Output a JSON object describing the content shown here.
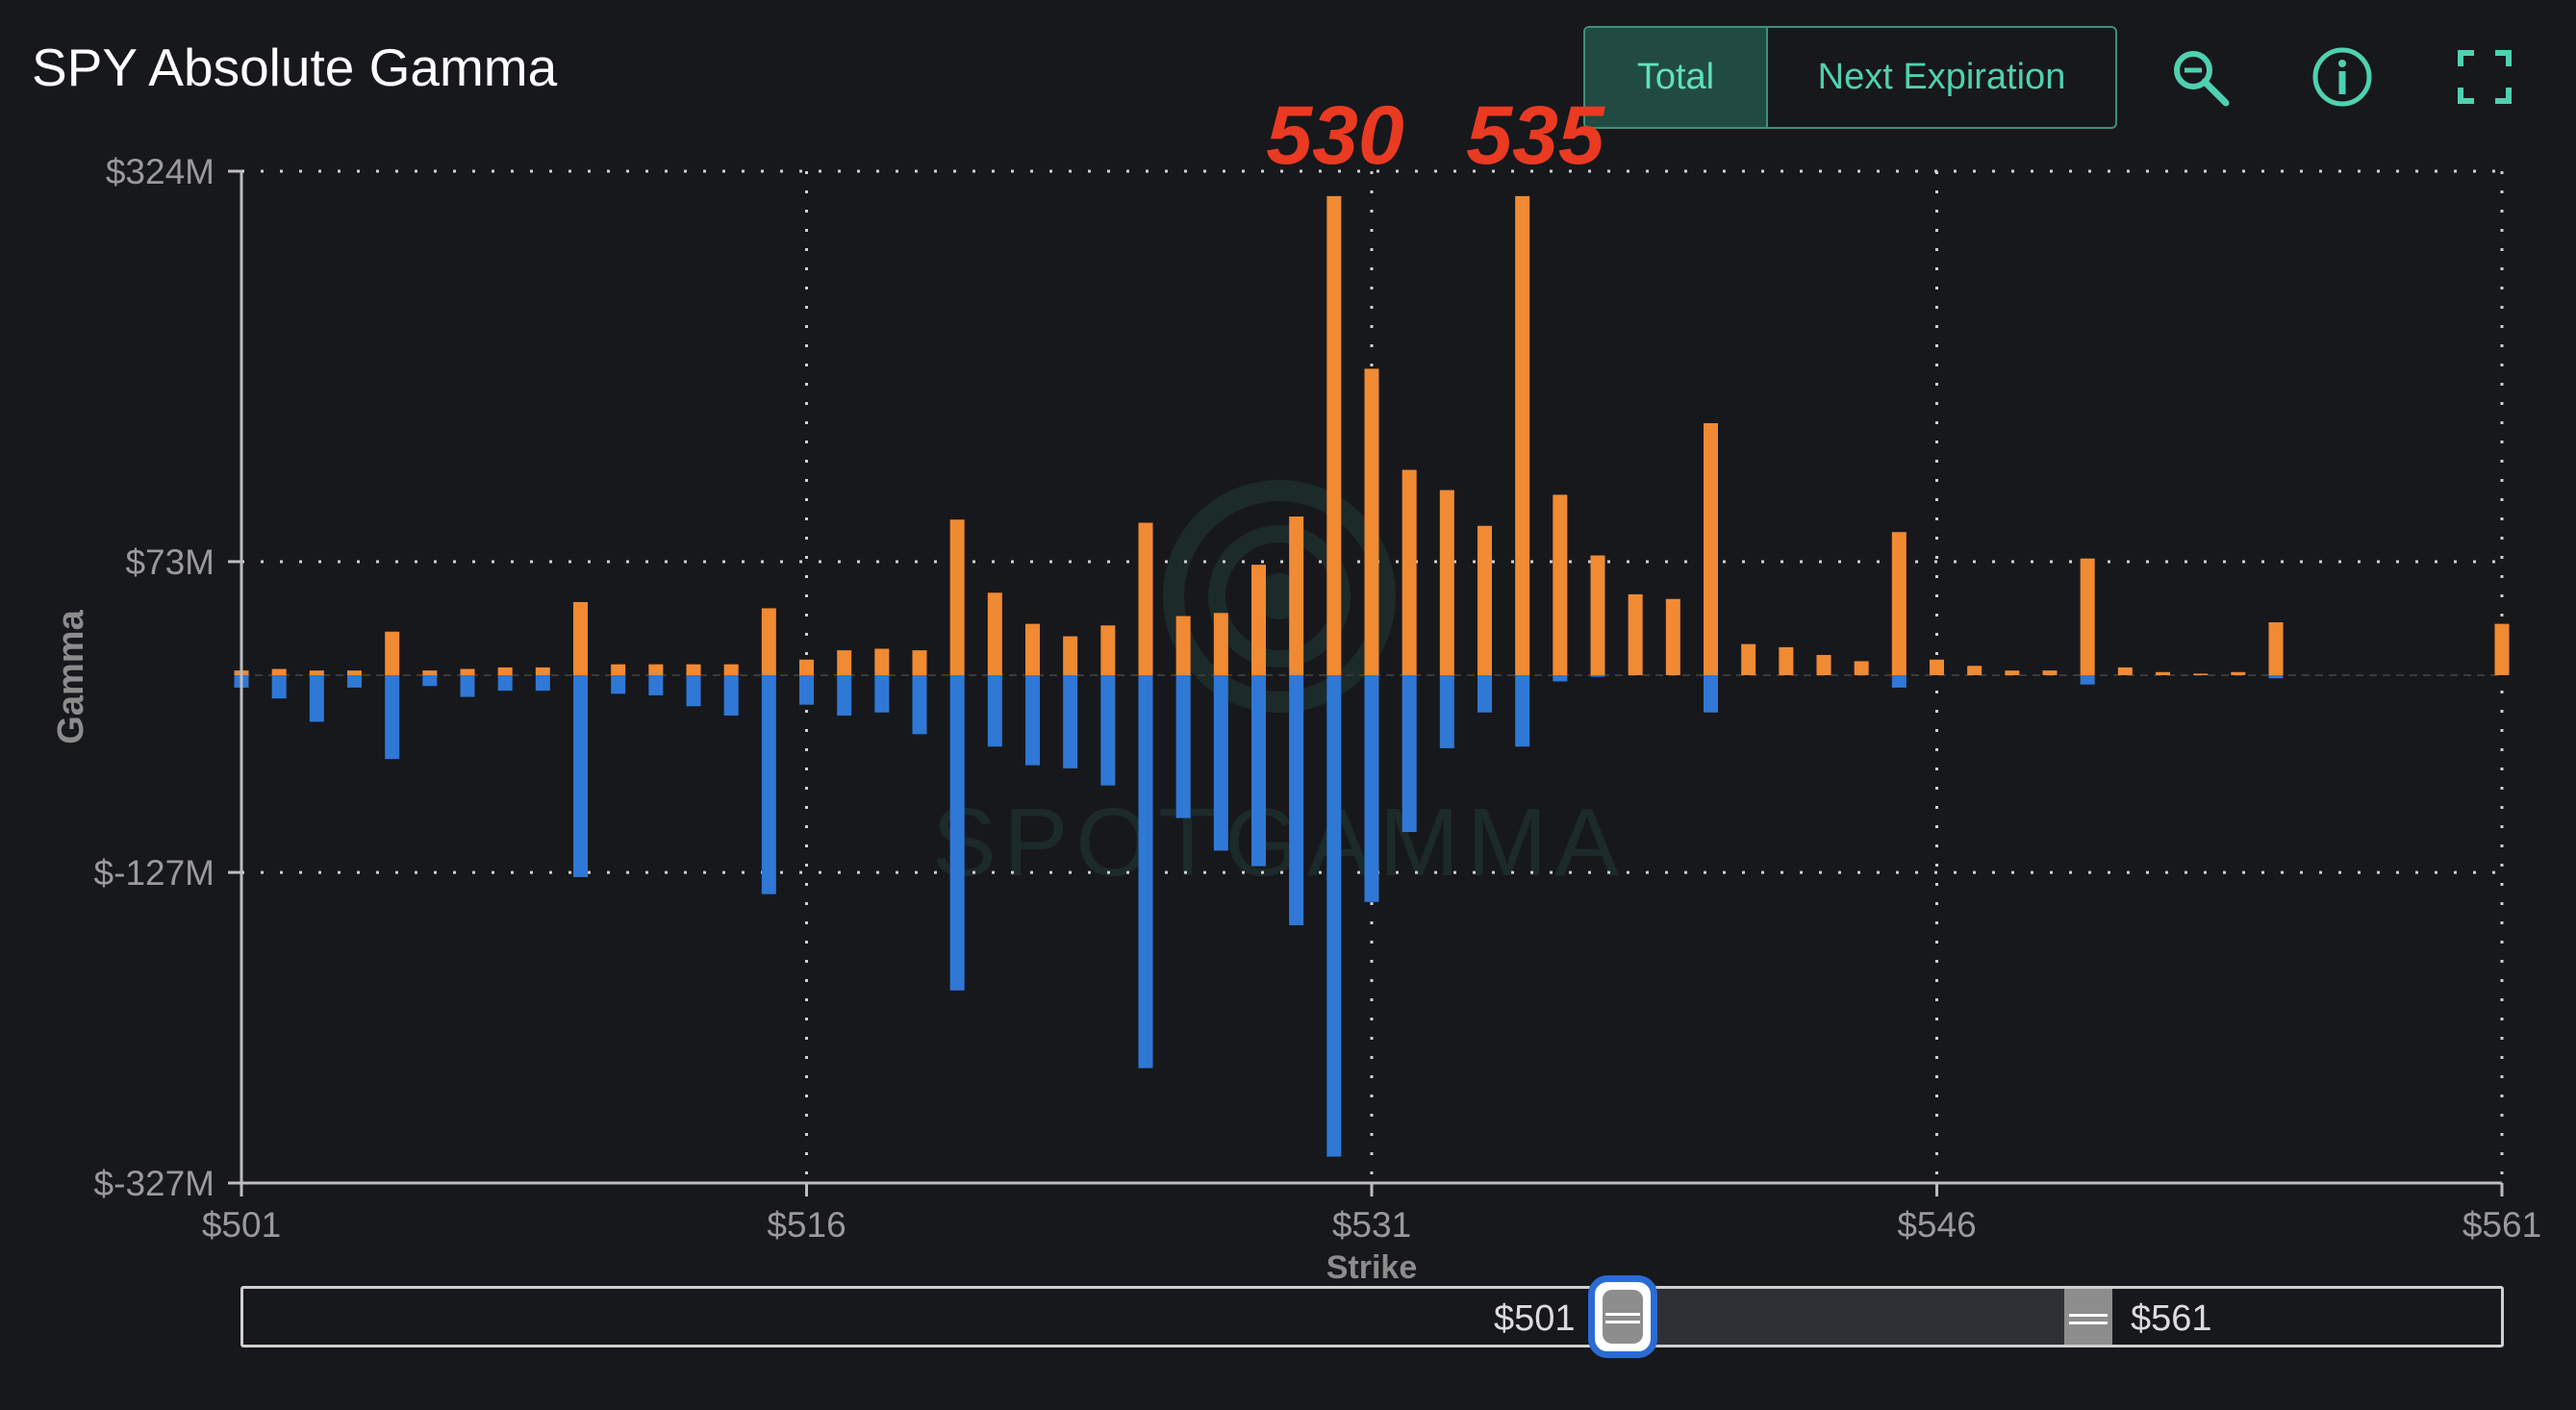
{
  "header": {
    "title": "SPY Absolute Gamma",
    "toggle": {
      "total_label": "Total",
      "next_expiration_label": "Next Expiration",
      "selected": "Total"
    },
    "icons": [
      "zoom-icon",
      "info-icon",
      "fullscreen-icon"
    ]
  },
  "colors": {
    "background": "#17181c",
    "call_gamma": "#f08a33",
    "put_gamma": "#2f78d6",
    "accent": "#4fd1b0",
    "annotation": "#ea3a22"
  },
  "annotations": [
    "530",
    "535"
  ],
  "watermark": "SPOTGAMMA",
  "range_slider": {
    "min_label": "$501",
    "max_label": "$561"
  },
  "chart_data": {
    "type": "bar",
    "title": "SPY Absolute Gamma",
    "xlabel": "Strike",
    "ylabel": "Gamma",
    "xlim": [
      501,
      561
    ],
    "ylim": [
      -327,
      324
    ],
    "x_ticks": [
      501,
      516,
      531,
      546,
      561
    ],
    "x_tick_labels": [
      "$501",
      "$516",
      "$531",
      "$546",
      "$561"
    ],
    "y_ticks": [
      324,
      73,
      -127,
      -327
    ],
    "y_tick_labels": [
      "$324M",
      "$73M",
      "$-127M",
      "$-327M"
    ],
    "grid": true,
    "stacked": true,
    "units": "M",
    "strikes": [
      501,
      502,
      503,
      504,
      505,
      506,
      507,
      508,
      509,
      510,
      511,
      512,
      513,
      514,
      515,
      516,
      517,
      518,
      519,
      520,
      521,
      522,
      523,
      524,
      525,
      526,
      527,
      528,
      529,
      530,
      531,
      532,
      533,
      534,
      535,
      536,
      537,
      538,
      539,
      540,
      541,
      542,
      543,
      544,
      545,
      546,
      547,
      548,
      549,
      550,
      551,
      552,
      553,
      554,
      555,
      556,
      557,
      558,
      559,
      560,
      561
    ],
    "series": [
      {
        "name": "Call Gamma",
        "color": "#f08a33",
        "values": [
          3,
          4,
          3,
          3,
          28,
          3,
          4,
          5,
          5,
          47,
          7,
          7,
          7,
          7,
          43,
          10,
          16,
          17,
          16,
          100,
          53,
          33,
          25,
          32,
          98,
          38,
          40,
          71,
          102,
          308,
          197,
          132,
          119,
          96,
          308,
          116,
          77,
          52,
          49,
          162,
          20,
          18,
          13,
          9,
          92,
          10,
          6,
          3,
          3,
          75,
          5,
          2,
          1,
          2,
          34,
          0,
          0,
          0,
          0,
          0,
          33
        ]
      },
      {
        "name": "Put Gamma",
        "color": "#2f78d6",
        "values": [
          -8,
          -15,
          -30,
          -8,
          -54,
          -7,
          -14,
          -10,
          -10,
          -130,
          -12,
          -13,
          -20,
          -26,
          -141,
          -19,
          -26,
          -24,
          -38,
          -203,
          -46,
          -58,
          -60,
          -71,
          -253,
          -92,
          -113,
          -123,
          -161,
          -310,
          -146,
          -101,
          -47,
          -24,
          -46,
          -4,
          -1,
          0,
          0,
          -24,
          0,
          0,
          0,
          0,
          -8,
          0,
          0,
          0,
          0,
          -6,
          0,
          0,
          0,
          0,
          -2,
          0,
          0,
          0,
          0,
          0,
          0
        ]
      }
    ]
  }
}
